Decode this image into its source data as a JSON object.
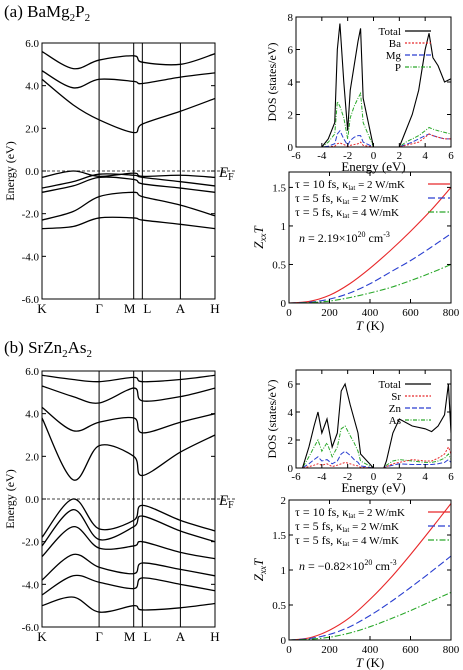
{
  "panels": [
    {
      "label": "(a)",
      "compound": {
        "base": "BaMg",
        "sub1": "2",
        "mid": "P",
        "sub2": "2"
      },
      "band": {
        "ylabel": "Energy (eV)",
        "ef_label": "E",
        "ef_sub": "F",
        "kpoints": [
          "K",
          "Γ",
          "M",
          "L",
          "A",
          "H"
        ],
        "yticks": [
          "6.0",
          "4.0",
          "2.0",
          "0.0",
          "-2.0",
          "-4.0",
          "-6.0"
        ]
      },
      "dos": {
        "xlabel": "Energy (eV)",
        "ylabel": "DOS (states/eV)",
        "xticks": [
          "-6",
          "-4",
          "-2",
          "0",
          "2",
          "4",
          "6"
        ],
        "yticks": [
          "0",
          "2",
          "4",
          "6",
          "8"
        ],
        "legend": [
          "Total",
          "Ba",
          "Mg",
          "P"
        ]
      },
      "zt": {
        "xlabel": "T",
        "xunit": "(K)",
        "xticks": [
          "0",
          "200",
          "400",
          "600",
          "800"
        ],
        "yticks": [
          "0",
          "0.5",
          "1",
          "1.5"
        ],
        "legend": [
          {
            "tau": "τ = 10 fs,",
            "kappa": "κ",
            "kappa_sub": "lat",
            "kappa_val": " = 2 W/mK"
          },
          {
            "tau": "τ = 5 fs,",
            "kappa": "κ",
            "kappa_sub": "lat",
            "kappa_val": " = 2 W/mK"
          },
          {
            "tau": "τ = 5 fs,",
            "kappa": "κ",
            "kappa_sub": "lat",
            "kappa_val": " = 4 W/mK"
          }
        ],
        "n_text": {
          "pre": "n",
          "mid": " = 2.19×10",
          "exp": "20",
          "unit": " cm",
          "unit_exp": "-3"
        }
      }
    },
    {
      "label": "(b)",
      "compound": {
        "base": "SrZn",
        "sub1": "2",
        "mid": "As",
        "sub2": "2"
      },
      "band": {
        "ylabel": "Energy (eV)",
        "ef_label": "E",
        "ef_sub": "F",
        "kpoints": [
          "K",
          "Γ",
          "M",
          "L",
          "A",
          "H"
        ],
        "yticks": [
          "6.0",
          "4.0",
          "2.0",
          "0.0",
          "-2.0",
          "-4.0",
          "-6.0"
        ]
      },
      "dos": {
        "xlabel": "Energy (eV)",
        "ylabel": "DOS (states/eV)",
        "xticks": [
          "-6",
          "-4",
          "-2",
          "0",
          "2",
          "4",
          "6"
        ],
        "yticks": [
          "0",
          "2",
          "4",
          "6"
        ],
        "legend": [
          "Total",
          "Sr",
          "Zn",
          "As"
        ]
      },
      "zt": {
        "xlabel": "T",
        "xunit": "(K)",
        "xticks": [
          "0",
          "200",
          "400",
          "600",
          "800"
        ],
        "yticks": [
          "0",
          "0.5",
          "1",
          "1.5",
          "2"
        ],
        "legend": [
          {
            "tau": "τ = 10 fs,",
            "kappa": "κ",
            "kappa_sub": "lat",
            "kappa_val": " = 2 W/mK"
          },
          {
            "tau": "τ = 5 fs,",
            "kappa": "κ",
            "kappa_sub": "lat",
            "kappa_val": " = 2 W/mK"
          },
          {
            "tau": "τ = 5 fs,",
            "kappa": "κ",
            "kappa_sub": "lat",
            "kappa_val": " = 4 W/mK"
          }
        ],
        "n_text": {
          "pre": "n",
          "mid": " = −0.82×10",
          "exp": "20",
          "unit": " cm",
          "unit_exp": "-3"
        }
      }
    }
  ],
  "colors": {
    "total": "#000000",
    "series1": "#e8282a",
    "series2": "#2a3fd0",
    "series3": "#2aa82a"
  },
  "chart_data": [
    {
      "type": "line",
      "panel": "a-bands",
      "ylim": [
        -6,
        6
      ],
      "kpath": [
        "K",
        "Γ",
        "M",
        "L",
        "A",
        "H"
      ],
      "fermi_level": 0.0,
      "bands": [
        [
          -2.7,
          -2.6,
          -2.2,
          -2.2,
          -2.3,
          -2.5,
          -2.7
        ],
        [
          -2.3,
          -1.9,
          -1.2,
          -1.0,
          -1.2,
          -1.6,
          -2.1
        ],
        [
          -1.0,
          -0.7,
          -0.3,
          -0.4,
          -0.6,
          -0.8,
          -1.0
        ],
        [
          -0.8,
          -0.5,
          -0.15,
          -0.2,
          -0.3,
          -0.5,
          -0.7
        ],
        [
          -0.3,
          0.0,
          -0.25,
          -0.1,
          -0.25,
          -0.2,
          -0.3
        ],
        [
          4.3,
          3.1,
          2.4,
          1.8,
          2.2,
          2.8,
          3.4
        ],
        [
          4.7,
          3.9,
          4.3,
          4.2,
          4.1,
          4.4,
          4.6
        ],
        [
          5.6,
          4.8,
          5.2,
          5.4,
          5.1,
          5.0,
          5.5
        ]
      ]
    },
    {
      "type": "line",
      "panel": "a-dos",
      "xlabel": "Energy (eV)",
      "ylabel": "DOS (states/eV)",
      "xlim": [
        -6,
        6
      ],
      "ylim": [
        0,
        8
      ],
      "x": [
        -6,
        -5,
        -4,
        -3.5,
        -3.0,
        -2.8,
        -2.6,
        -2.3,
        -2.0,
        -1.8,
        -1.5,
        -1.2,
        -1.0,
        -0.8,
        0,
        1.0,
        1.5,
        2.0,
        2.5,
        3.0,
        3.5,
        4.0,
        4.3,
        4.6,
        5.0,
        5.5,
        6.0
      ],
      "series": [
        {
          "name": "Total",
          "values": [
            0,
            0,
            0,
            0.5,
            1.5,
            6.0,
            7.6,
            4.0,
            1.0,
            3.5,
            5.0,
            6.5,
            7.3,
            3.0,
            0,
            0,
            0,
            0,
            1.0,
            2.0,
            3.5,
            6.0,
            7.0,
            5.5,
            5.0,
            4.0,
            4.2
          ]
        },
        {
          "name": "Ba",
          "values": [
            0,
            0,
            0,
            0,
            0.05,
            0.2,
            0.25,
            0.15,
            0.05,
            0.1,
            0.15,
            0.2,
            0.3,
            0.1,
            0,
            0,
            0,
            0,
            0.1,
            0.2,
            0.3,
            0.6,
            0.8,
            0.7,
            0.6,
            0.5,
            0.5
          ]
        },
        {
          "name": "Mg",
          "values": [
            0,
            0,
            0,
            0.05,
            0.2,
            0.8,
            1.0,
            0.5,
            0.1,
            0.4,
            0.6,
            0.7,
            0.7,
            0.3,
            0,
            0,
            0,
            0,
            0.15,
            0.3,
            0.5,
            0.7,
            0.8,
            0.7,
            0.6,
            0.5,
            0.5
          ]
        },
        {
          "name": "P",
          "values": [
            0,
            0,
            0,
            0.3,
            0.8,
            2.8,
            2.5,
            1.8,
            0.5,
            1.8,
            2.5,
            3.0,
            3.3,
            1.5,
            0,
            0,
            0,
            0,
            0.3,
            0.5,
            0.7,
            1.0,
            1.2,
            1.1,
            1.0,
            0.9,
            0.8
          ]
        }
      ]
    },
    {
      "type": "line",
      "panel": "a-zt",
      "xlabel": "T (K)",
      "ylabel": "ZxxT",
      "xlim": [
        0,
        800
      ],
      "ylim": [
        0,
        1.7
      ],
      "x": [
        0,
        100,
        200,
        300,
        400,
        500,
        600,
        700,
        800
      ],
      "series": [
        {
          "name": "τ = 10 fs, κlat = 2 W/mK",
          "values": [
            0,
            0.02,
            0.1,
            0.25,
            0.45,
            0.68,
            0.93,
            1.2,
            1.5
          ]
        },
        {
          "name": "τ = 5 fs, κlat = 2 W/mK",
          "values": [
            0,
            0.01,
            0.05,
            0.13,
            0.25,
            0.4,
            0.55,
            0.72,
            0.9
          ]
        },
        {
          "name": "τ = 5 fs, κlat = 4 W/mK",
          "values": [
            0,
            0.005,
            0.025,
            0.07,
            0.13,
            0.2,
            0.29,
            0.39,
            0.5
          ]
        }
      ]
    },
    {
      "type": "line",
      "panel": "b-bands",
      "ylim": [
        -6,
        6
      ],
      "kpath": [
        "K",
        "Γ",
        "M",
        "L",
        "A",
        "H"
      ],
      "fermi_level": 0.0,
      "bands": [
        [
          -5.0,
          -4.6,
          -5.3,
          -5.0,
          -5.2,
          -5.1,
          -4.9
        ],
        [
          -4.5,
          -3.6,
          -3.9,
          -4.2,
          -3.7,
          -4.0,
          -4.3
        ],
        [
          -3.8,
          -2.6,
          -3.2,
          -3.5,
          -3.0,
          -3.3,
          -3.6
        ],
        [
          -2.7,
          -1.3,
          -2.3,
          -2.2,
          -2.0,
          -2.5,
          -2.8
        ],
        [
          -2.2,
          -0.5,
          -1.9,
          -1.3,
          -0.8,
          -1.5,
          -2.0
        ],
        [
          -1.8,
          0.0,
          -1.4,
          -1.0,
          -0.3,
          -1.0,
          -1.5
        ],
        [
          3.8,
          0.9,
          2.5,
          2.0,
          1.1,
          2.2,
          3.0
        ],
        [
          4.3,
          3.2,
          3.6,
          3.8,
          3.1,
          3.6,
          4.0
        ],
        [
          5.3,
          4.8,
          4.5,
          5.2,
          4.6,
          4.8,
          5.2
        ],
        [
          5.8,
          5.6,
          5.5,
          5.7,
          5.5,
          5.6,
          5.8
        ]
      ]
    },
    {
      "type": "line",
      "panel": "b-dos",
      "xlabel": "Energy (eV)",
      "ylabel": "DOS (states/eV)",
      "xlim": [
        -6,
        6
      ],
      "ylim": [
        0,
        7
      ],
      "x": [
        -6,
        -5.5,
        -5.0,
        -4.6,
        -4.3,
        -4.0,
        -3.6,
        -3.2,
        -2.8,
        -2.5,
        -2.2,
        -1.8,
        -1.5,
        -1.2,
        -1.0,
        0,
        0.8,
        1.0,
        1.5,
        2.0,
        3.0,
        4.0,
        4.5,
        5.0,
        5.5,
        5.8,
        6.0
      ],
      "series": [
        {
          "name": "Total",
          "values": [
            0,
            0,
            1.5,
            3.0,
            4.0,
            2.5,
            3.5,
            1.5,
            2.5,
            5.5,
            6.0,
            4.5,
            3.5,
            2.5,
            1.0,
            0,
            0,
            0.5,
            2.5,
            3.5,
            3.0,
            2.8,
            2.6,
            3.0,
            3.8,
            6.0,
            2.5
          ]
        },
        {
          "name": "Sr",
          "values": [
            0,
            0,
            0.1,
            0.2,
            0.3,
            0.2,
            0.3,
            0.1,
            0.2,
            0.3,
            0.4,
            0.3,
            0.2,
            0.15,
            0.05,
            0,
            0,
            0.1,
            0.3,
            0.4,
            0.6,
            0.5,
            0.5,
            0.7,
            1.0,
            1.5,
            1.0
          ]
        },
        {
          "name": "Zn",
          "values": [
            0,
            0,
            0.3,
            0.6,
            0.8,
            0.5,
            0.6,
            0.3,
            0.5,
            1.0,
            1.2,
            0.9,
            0.6,
            0.4,
            0.15,
            0,
            0,
            0.1,
            0.2,
            0.3,
            0.25,
            0.25,
            0.25,
            0.3,
            0.4,
            0.6,
            0.4
          ]
        },
        {
          "name": "As",
          "values": [
            0,
            0,
            0.8,
            1.5,
            2.0,
            1.2,
            1.8,
            0.8,
            1.5,
            2.8,
            3.0,
            2.3,
            1.8,
            1.2,
            0.5,
            0,
            0,
            0.2,
            0.5,
            0.6,
            0.5,
            0.4,
            0.4,
            0.5,
            0.7,
            1.0,
            0.6
          ]
        }
      ]
    },
    {
      "type": "line",
      "panel": "b-zt",
      "xlabel": "T (K)",
      "ylabel": "ZxxT",
      "xlim": [
        0,
        800
      ],
      "ylim": [
        0,
        2
      ],
      "x": [
        0,
        100,
        200,
        300,
        400,
        500,
        600,
        700,
        800
      ],
      "series": [
        {
          "name": "τ = 10 fs, κlat = 2 W/mK",
          "values": [
            0,
            0.03,
            0.14,
            0.32,
            0.58,
            0.88,
            1.22,
            1.58,
            1.95
          ]
        },
        {
          "name": "τ = 5 fs, κlat = 2 W/mK",
          "values": [
            0,
            0.02,
            0.08,
            0.19,
            0.35,
            0.54,
            0.75,
            0.97,
            1.2
          ]
        },
        {
          "name": "τ = 5 fs, κlat = 4 W/mK",
          "values": [
            0,
            0.01,
            0.04,
            0.1,
            0.19,
            0.3,
            0.42,
            0.55,
            0.68
          ]
        }
      ]
    }
  ]
}
